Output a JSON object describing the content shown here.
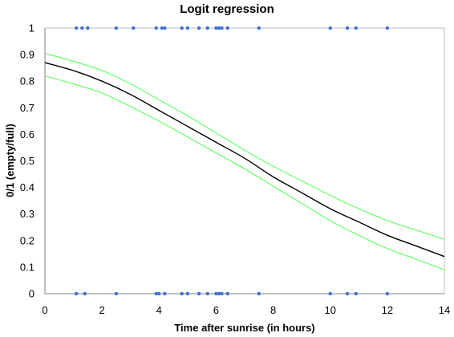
{
  "chart_data": {
    "type": "line",
    "title": "Logit regression",
    "xlabel": "Time after sunrise (in hours)",
    "ylabel": "0/1 (empty/full)",
    "xlim": [
      0,
      14
    ],
    "ylim": [
      0,
      1
    ],
    "x_ticks": [
      "0",
      "2",
      "4",
      "6",
      "8",
      "10",
      "12",
      "14"
    ],
    "y_ticks": [
      "0",
      "0.1",
      "0.2",
      "0.3",
      "0.4",
      "0.5",
      "0.6",
      "0.7",
      "0.8",
      "0.9",
      "1"
    ],
    "grid": false,
    "legend": "none",
    "series": [
      {
        "kind": "curve",
        "color": "#000000",
        "x": [
          0,
          1,
          2,
          3,
          4,
          5,
          6,
          7,
          8,
          9,
          10,
          11,
          12,
          13,
          14
        ],
        "y": [
          0.87,
          0.84,
          0.8,
          0.75,
          0.69,
          0.63,
          0.57,
          0.51,
          0.44,
          0.38,
          0.32,
          0.27,
          0.22,
          0.18,
          0.14
        ]
      },
      {
        "kind": "curve",
        "color": "#66ff66",
        "x": [
          0,
          1,
          2,
          3,
          4,
          5,
          6,
          7,
          8,
          9,
          10,
          11,
          12,
          13,
          14
        ],
        "y": [
          0.905,
          0.875,
          0.84,
          0.79,
          0.73,
          0.67,
          0.605,
          0.54,
          0.48,
          0.425,
          0.37,
          0.32,
          0.275,
          0.24,
          0.205
        ]
      },
      {
        "kind": "curve",
        "color": "#66ff66",
        "x": [
          0,
          1,
          2,
          3,
          4,
          5,
          6,
          7,
          8,
          9,
          10,
          11,
          12,
          13,
          14
        ],
        "y": [
          0.82,
          0.79,
          0.755,
          0.705,
          0.65,
          0.59,
          0.53,
          0.47,
          0.405,
          0.34,
          0.275,
          0.22,
          0.17,
          0.13,
          0.09
        ]
      },
      {
        "kind": "points",
        "color": "#3f6fd1",
        "x": [
          1.1,
          1.3,
          1.5,
          2.5,
          3.1,
          3.9,
          4.1,
          4.2,
          4.8,
          5.0,
          5.4,
          5.7,
          6.0,
          6.1,
          6.2,
          6.4,
          7.5,
          10.0,
          10.6,
          10.9,
          12.0
        ],
        "y": [
          1,
          1,
          1,
          1,
          1,
          1,
          1,
          1,
          1,
          1,
          1,
          1,
          1,
          1,
          1,
          1,
          1,
          1,
          1,
          1,
          1
        ]
      },
      {
        "kind": "points",
        "color": "#3f6fd1",
        "x": [
          1.1,
          1.4,
          2.5,
          3.9,
          4.0,
          4.2,
          4.8,
          5.0,
          5.4,
          5.7,
          6.0,
          6.1,
          6.2,
          6.4,
          7.5,
          10.0,
          10.6,
          10.9,
          12.0
        ],
        "y": [
          0,
          0,
          0,
          0,
          0,
          0,
          0,
          0,
          0,
          0,
          0,
          0,
          0,
          0,
          0,
          0,
          0,
          0,
          0
        ]
      }
    ]
  }
}
